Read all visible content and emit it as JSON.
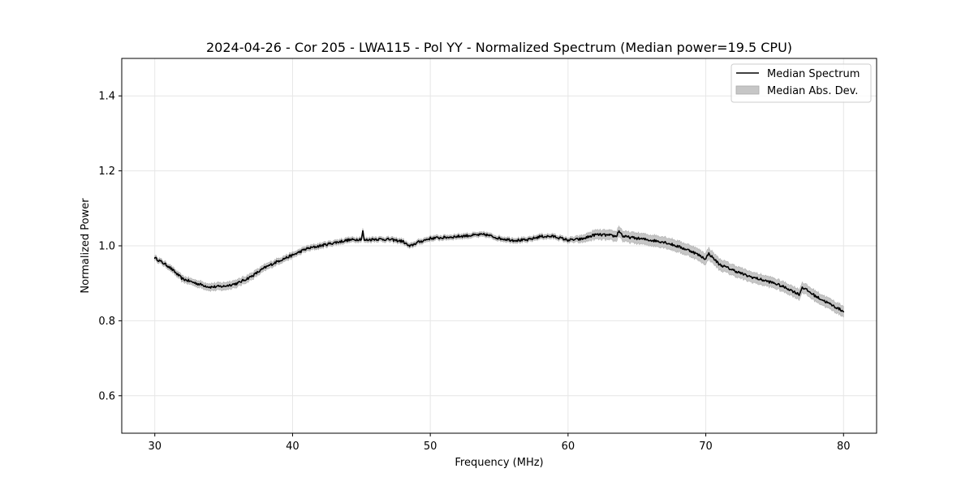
{
  "chart_data": {
    "type": "line",
    "title": "2024-04-26 - Cor 205 - LWA115 - Pol YY - Normalized Spectrum (Median power=19.5 CPU)",
    "xlabel": "Frequency (MHz)",
    "ylabel": "Normalized Power",
    "xlim": [
      27.6,
      82.4
    ],
    "ylim": [
      0.5,
      1.5
    ],
    "xticks": [
      30,
      40,
      50,
      60,
      70,
      80
    ],
    "yticks": [
      0.6,
      0.8,
      1.0,
      1.2,
      1.4
    ],
    "xtick_labels": [
      "30",
      "40",
      "50",
      "60",
      "70",
      "80"
    ],
    "ytick_labels": [
      "0.6",
      "0.8",
      "1.0",
      "1.2",
      "1.4"
    ],
    "grid": true,
    "legend": {
      "placement": "top-right",
      "entries": [
        "Median Spectrum",
        "Median Abs. Dev."
      ]
    },
    "series": [
      {
        "name": "Median Spectrum",
        "color": "#000000",
        "x": [
          30,
          31,
          32,
          33,
          34,
          35,
          36,
          37,
          38,
          39,
          40,
          41,
          42,
          43,
          44,
          45,
          45.1,
          45.2,
          46,
          47,
          48,
          48.5,
          49,
          50,
          51,
          52,
          53,
          54,
          55,
          56,
          57,
          58,
          59,
          60,
          61,
          62,
          63,
          63.5,
          63.7,
          64,
          65,
          66,
          67,
          68,
          69,
          70,
          70.2,
          71,
          72,
          73,
          74,
          75,
          76,
          76.8,
          77,
          78,
          79,
          80
        ],
        "y": [
          0.968,
          0.945,
          0.912,
          0.9,
          0.89,
          0.892,
          0.9,
          0.918,
          0.942,
          0.96,
          0.975,
          0.992,
          1.0,
          1.008,
          1.015,
          1.018,
          1.04,
          1.015,
          1.018,
          1.017,
          1.012,
          0.998,
          1.008,
          1.02,
          1.022,
          1.025,
          1.028,
          1.03,
          1.02,
          1.015,
          1.015,
          1.025,
          1.025,
          1.015,
          1.018,
          1.03,
          1.028,
          1.025,
          1.04,
          1.025,
          1.02,
          1.015,
          1.01,
          0.998,
          0.985,
          0.965,
          0.98,
          0.95,
          0.935,
          0.92,
          0.91,
          0.9,
          0.885,
          0.87,
          0.89,
          0.865,
          0.845,
          0.825
        ]
      },
      {
        "name": "Median Abs. Dev.",
        "color": "#c6c6c6",
        "x": [
          30,
          35,
          40,
          45,
          50,
          55,
          60,
          62,
          65,
          70,
          75,
          80
        ],
        "half_width": [
          0.006,
          0.01,
          0.007,
          0.006,
          0.006,
          0.006,
          0.006,
          0.012,
          0.014,
          0.015,
          0.013,
          0.014
        ]
      }
    ]
  }
}
